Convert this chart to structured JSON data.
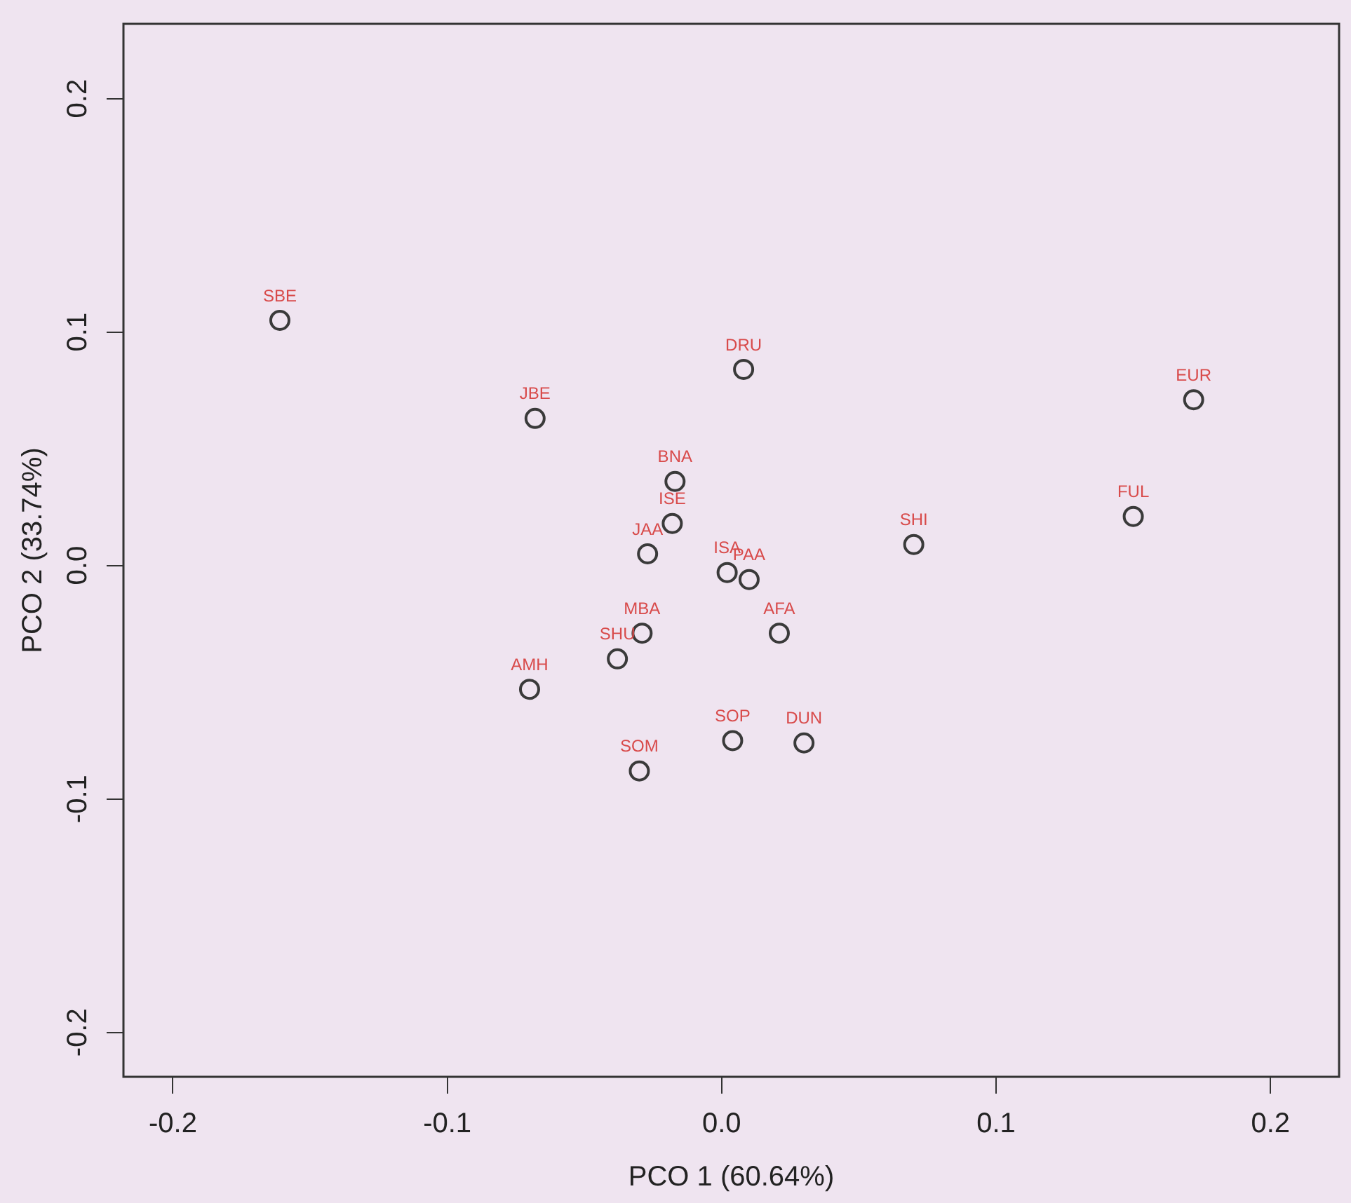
{
  "chart_data": {
    "type": "scatter",
    "xlabel": "PCO 1 (60.64%)",
    "ylabel": "PCO 2 (33.74%)",
    "x": [
      -0.161,
      -0.068,
      0.008,
      0.172,
      -0.017,
      -0.018,
      0.15,
      0.07,
      -0.027,
      0.002,
      0.01,
      -0.029,
      0.021,
      -0.038,
      -0.07,
      0.004,
      0.03,
      -0.03
    ],
    "series": [
      {
        "color": "#3a3a3a",
        "values": [
          0.105,
          0.063,
          0.084,
          0.071,
          0.036,
          0.018,
          0.021,
          0.009,
          0.005,
          -0.003,
          -0.006,
          -0.029,
          -0.029,
          -0.04,
          -0.053,
          -0.075,
          -0.076,
          -0.088
        ]
      }
    ],
    "annotations": [
      {
        "text": "SBE",
        "x": -0.161,
        "y": 0.105
      },
      {
        "text": "JBE",
        "x": -0.068,
        "y": 0.063
      },
      {
        "text": "DRU",
        "x": 0.008,
        "y": 0.084
      },
      {
        "text": "EUR",
        "x": 0.172,
        "y": 0.071
      },
      {
        "text": "BNA",
        "x": -0.017,
        "y": 0.036
      },
      {
        "text": "ISE",
        "x": -0.018,
        "y": 0.018
      },
      {
        "text": "FUL",
        "x": 0.15,
        "y": 0.021
      },
      {
        "text": "SHI",
        "x": 0.07,
        "y": 0.009
      },
      {
        "text": "JAA",
        "x": -0.027,
        "y": 0.005
      },
      {
        "text": "ISA",
        "x": 0.002,
        "y": -0.003
      },
      {
        "text": "PAA",
        "x": 0.01,
        "y": -0.006
      },
      {
        "text": "MBA",
        "x": -0.029,
        "y": -0.029
      },
      {
        "text": "AFA",
        "x": 0.021,
        "y": -0.029
      },
      {
        "text": "SHU",
        "x": -0.038,
        "y": -0.04
      },
      {
        "text": "AMH",
        "x": -0.07,
        "y": -0.053
      },
      {
        "text": "SOP",
        "x": 0.004,
        "y": -0.075
      },
      {
        "text": "DUN",
        "x": 0.03,
        "y": -0.076
      },
      {
        "text": "SOM",
        "x": -0.03,
        "y": -0.088
      }
    ],
    "xlim": [
      -0.218,
      0.225
    ],
    "ylim": [
      -0.219,
      0.232
    ],
    "xticks": [
      -0.2,
      -0.1,
      {
        "value": 0,
        "label": "0.0"
      },
      0.1,
      0.2
    ],
    "yticks": [
      -0.2,
      -0.1,
      {
        "value": 0,
        "label": "0.0"
      },
      0.1,
      0.2
    ],
    "marker": "circle",
    "grid": false,
    "legend": false
  }
}
